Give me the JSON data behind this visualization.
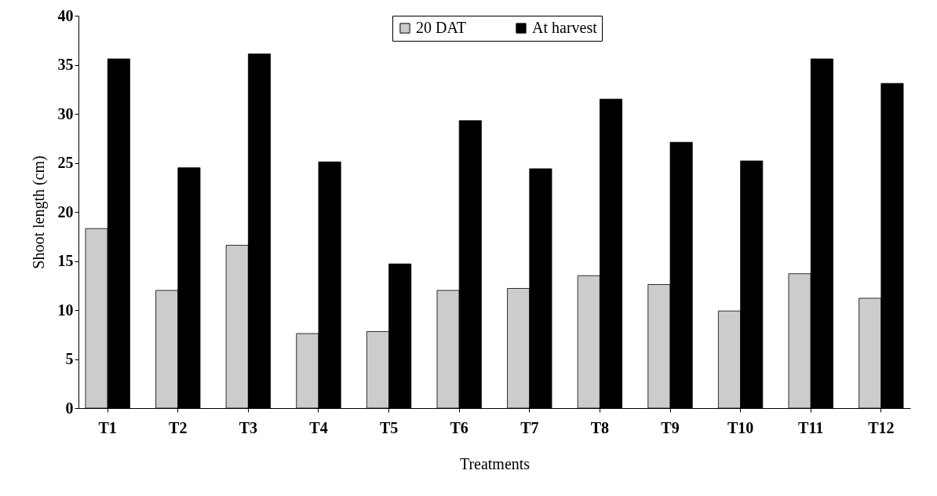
{
  "chart_data": {
    "type": "bar",
    "xlabel": "Treatments",
    "ylabel": "Shoot length (cm)",
    "categories": [
      "T1",
      "T2",
      "T3",
      "T4",
      "T5",
      "T6",
      "T7",
      "T8",
      "T9",
      "T10",
      "T11",
      "T12"
    ],
    "series": [
      {
        "name": "20 DAT",
        "color": "#cccccc",
        "values": [
          18.3,
          12.0,
          16.6,
          7.6,
          7.8,
          12.0,
          12.2,
          13.5,
          12.6,
          9.9,
          13.7,
          11.2
        ]
      },
      {
        "name": "At harvest",
        "color": "#000000",
        "values": [
          35.6,
          24.5,
          36.1,
          25.1,
          14.7,
          29.3,
          24.4,
          31.5,
          27.1,
          25.2,
          35.6,
          33.1
        ]
      }
    ],
    "ylim": [
      0,
      40
    ],
    "yticks": [
      0,
      5,
      10,
      15,
      20,
      25,
      30,
      35,
      40
    ],
    "grid": false,
    "legend": "top"
  }
}
